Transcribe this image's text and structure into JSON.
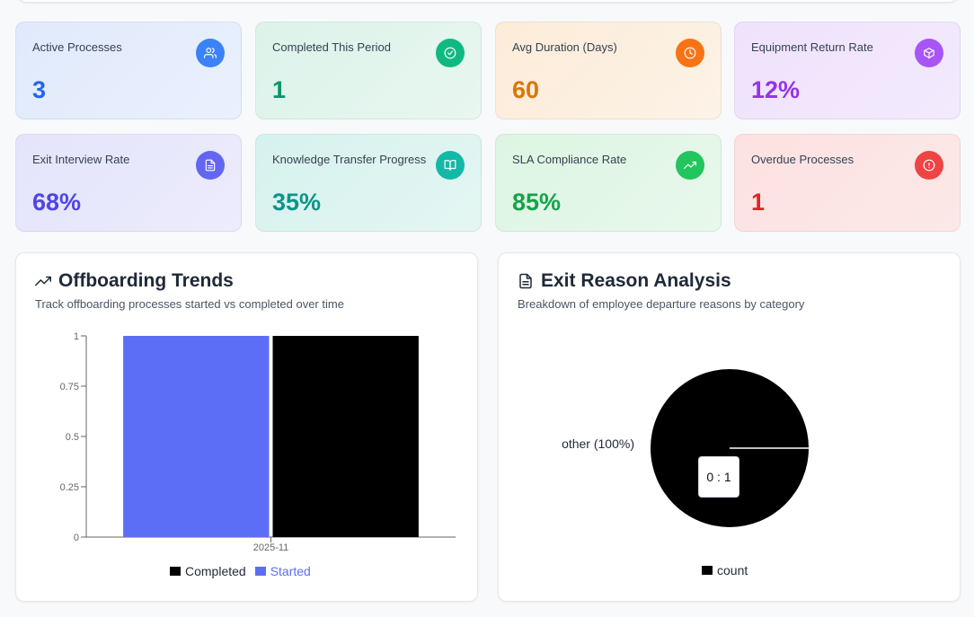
{
  "cards": [
    {
      "label": "Active Processes",
      "value": "3",
      "icon": "users-icon",
      "color": "#2563eb",
      "iconbg": "#3b82f6",
      "bg": "linear-gradient(135deg,#e0eafc,#eaf0fd)"
    },
    {
      "label": "Completed This Period",
      "value": "1",
      "icon": "check-circle-icon",
      "color": "#059669",
      "iconbg": "#10b981",
      "bg": "linear-gradient(135deg,#dcf3ea,#e8f7f0)"
    },
    {
      "label": "Avg Duration (Days)",
      "value": "60",
      "icon": "clock-icon",
      "color": "#d97706",
      "iconbg": "#f97316",
      "bg": "linear-gradient(135deg,#fdecd9,#fcf2e6)"
    },
    {
      "label": "Equipment Return Rate",
      "value": "12%",
      "icon": "package-icon",
      "color": "#9333ea",
      "iconbg": "#a855f7",
      "bg": "linear-gradient(135deg,#efe2fc,#f3eafd)"
    },
    {
      "label": "Exit Interview Rate",
      "value": "68%",
      "icon": "file-text-icon",
      "color": "#4f46e5",
      "iconbg": "#6366f1",
      "bg": "linear-gradient(135deg,#e4e4fb,#ececfd)"
    },
    {
      "label": "Knowledge Transfer Progress",
      "value": "35%",
      "icon": "book-open-icon",
      "color": "#0d9488",
      "iconbg": "#14b8a6",
      "bg": "linear-gradient(135deg,#d6f2ee,#e4f6f3)"
    },
    {
      "label": "SLA Compliance Rate",
      "value": "85%",
      "icon": "trending-up-icon",
      "color": "#16a34a",
      "iconbg": "#22c55e",
      "bg": "linear-gradient(135deg,#dcf5e2,#e8f8ec)"
    },
    {
      "label": "Overdue Processes",
      "value": "1",
      "icon": "alert-circle-icon",
      "color": "#dc2626",
      "iconbg": "#ef4444",
      "bg": "linear-gradient(135deg,#fde1e1,#fce8e8)"
    }
  ],
  "trends": {
    "title": "Offboarding Trends",
    "subtitle": "Track offboarding processes started vs completed over time",
    "icon": "trending-up-icon"
  },
  "exit": {
    "title": "Exit Reason Analysis",
    "subtitle": "Breakdown of employee departure reasons by category",
    "icon": "file-text-icon",
    "tooltip": "0 : 1"
  },
  "chart_data": [
    {
      "type": "bar",
      "categories": [
        "2025-11"
      ],
      "series": [
        {
          "name": "Started",
          "values": [
            1
          ],
          "color": "#5b6ef5"
        },
        {
          "name": "Completed",
          "values": [
            1
          ],
          "color": "#000000"
        }
      ],
      "ylim": [
        0,
        1
      ],
      "yticks": [
        "0",
        "0.25",
        "0.5",
        "0.75",
        "1"
      ],
      "legend": [
        "Completed",
        "Started"
      ]
    },
    {
      "type": "pie",
      "labels": [
        "other (100%)"
      ],
      "values": [
        1
      ],
      "color": "#000000",
      "legend": "count"
    }
  ]
}
